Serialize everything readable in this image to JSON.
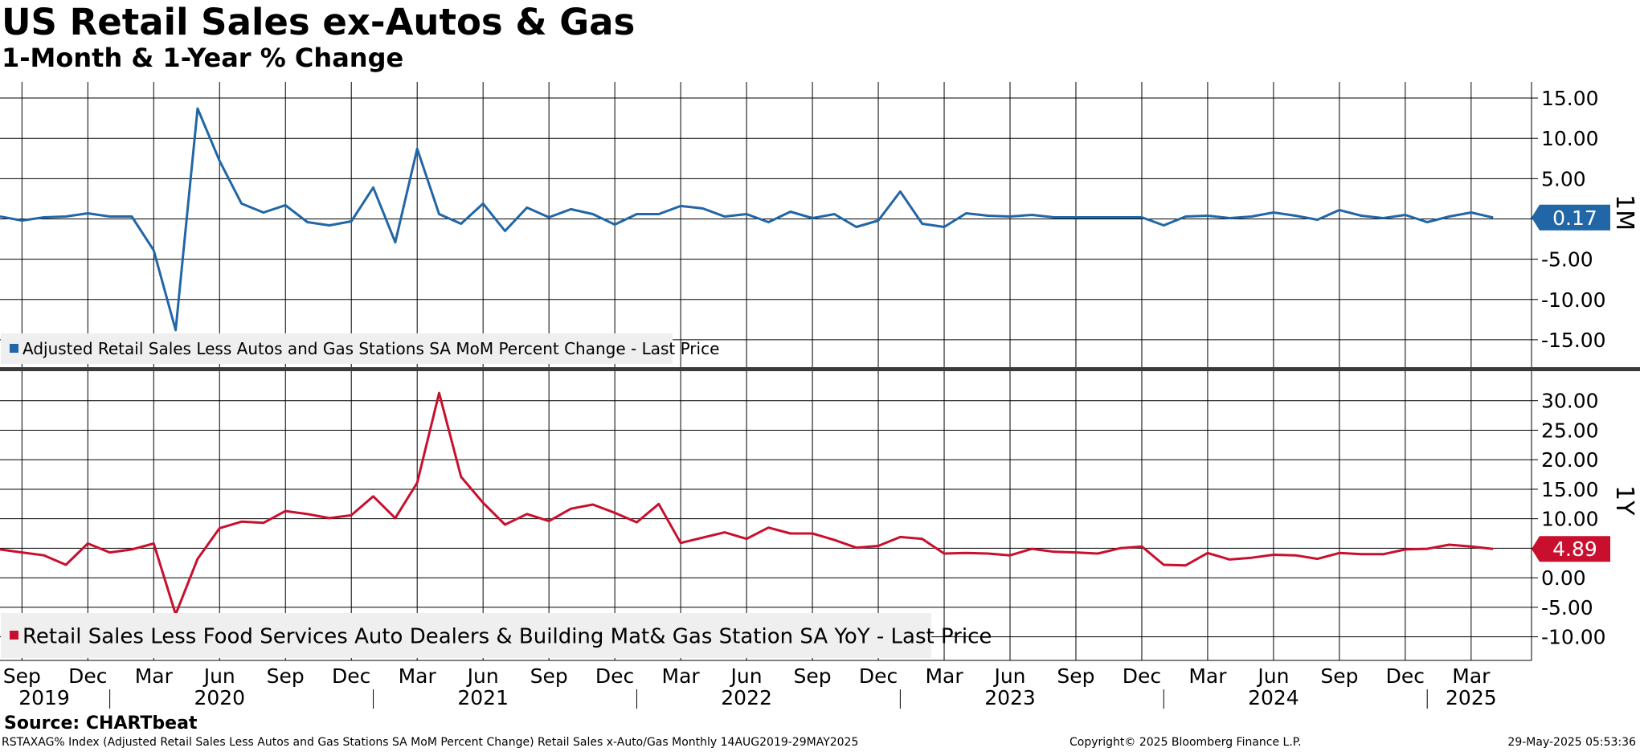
{
  "header": {
    "title": "US Retail Sales ex-Autos & Gas",
    "subtitle": "1-Month & 1-Year % Change"
  },
  "footer": {
    "source": "Source: CHARTbeat",
    "description": "RSTAXAG% Index (Adjusted Retail Sales Less Autos and Gas Stations SA MoM Percent Change) Retail Sales x-Auto/Gas  Monthly 14AUG2019-29MAY2025",
    "copyright": "Copyright© 2025 Bloomberg Finance L.P.",
    "timestamp": "29-May-2025 05:53:36"
  },
  "chart_data": [
    {
      "type": "line",
      "panel_label": "1M",
      "legend": "Adjusted Retail Sales Less Autos and Gas Stations SA MoM Percent Change - Last Price",
      "color": "#2166a6",
      "last_value_label": "0.17",
      "ylim": [
        -18.5,
        17
      ],
      "yticks": [
        15,
        10,
        5,
        0,
        -5,
        -10,
        -15
      ],
      "ytick_labels": [
        "15.00",
        "10.00",
        "5.00",
        "",
        "-5.00",
        "-10.00",
        "-15.00"
      ],
      "x": [
        "2019-08",
        "2019-09",
        "2019-10",
        "2019-11",
        "2019-12",
        "2020-01",
        "2020-02",
        "2020-03",
        "2020-04",
        "2020-05",
        "2020-06",
        "2020-07",
        "2020-08",
        "2020-09",
        "2020-10",
        "2020-11",
        "2020-12",
        "2021-01",
        "2021-02",
        "2021-03",
        "2021-04",
        "2021-05",
        "2021-06",
        "2021-07",
        "2021-08",
        "2021-09",
        "2021-10",
        "2021-11",
        "2021-12",
        "2022-01",
        "2022-02",
        "2022-03",
        "2022-04",
        "2022-05",
        "2022-06",
        "2022-07",
        "2022-08",
        "2022-09",
        "2022-10",
        "2022-11",
        "2022-12",
        "2023-01",
        "2023-02",
        "2023-03",
        "2023-04",
        "2023-05",
        "2023-06",
        "2023-07",
        "2023-08",
        "2023-09",
        "2023-10",
        "2023-11",
        "2023-12",
        "2024-01",
        "2024-02",
        "2024-03",
        "2024-04",
        "2024-05",
        "2024-06",
        "2024-07",
        "2024-08",
        "2024-09",
        "2024-10",
        "2024-11",
        "2024-12",
        "2025-01",
        "2025-02",
        "2025-03",
        "2025-04"
      ],
      "values": [
        0.3,
        -0.2,
        0.2,
        0.3,
        0.7,
        0.3,
        0.3,
        -3.9,
        -13.8,
        13.7,
        7.2,
        1.9,
        0.8,
        1.7,
        -0.4,
        -0.8,
        -0.3,
        3.9,
        -2.9,
        8.7,
        0.6,
        -0.6,
        1.9,
        -1.5,
        1.4,
        0.2,
        1.2,
        0.6,
        -0.7,
        0.6,
        0.6,
        1.6,
        1.3,
        0.3,
        0.6,
        -0.4,
        0.9,
        0.1,
        0.6,
        -1.0,
        -0.2,
        3.4,
        -0.6,
        -1.0,
        0.7,
        0.4,
        0.3,
        0.5,
        0.2,
        0.2,
        0.2,
        0.2,
        0.2,
        -0.8,
        0.3,
        0.4,
        0.1,
        0.3,
        0.8,
        0.4,
        -0.1,
        1.1,
        0.4,
        0.1,
        0.5,
        -0.4,
        0.3,
        0.8,
        0.17
      ]
    },
    {
      "type": "line",
      "panel_label": "1Y",
      "legend": "Retail Sales Less Food Services Auto Dealers & Building Mat& Gas Station SA YoY - Last Price",
      "color": "#c8102e",
      "last_value_label": "4.89",
      "ylim": [
        -14,
        35
      ],
      "yticks": [
        30,
        25,
        20,
        15,
        10,
        5,
        0,
        -5,
        -10
      ],
      "ytick_labels": [
        "30.00",
        "25.00",
        "20.00",
        "15.00",
        "10.00",
        "",
        "0.00",
        "-5.00",
        "-10.00"
      ],
      "x": [
        "2019-08",
        "2019-09",
        "2019-10",
        "2019-11",
        "2019-12",
        "2020-01",
        "2020-02",
        "2020-03",
        "2020-04",
        "2020-05",
        "2020-06",
        "2020-07",
        "2020-08",
        "2020-09",
        "2020-10",
        "2020-11",
        "2020-12",
        "2021-01",
        "2021-02",
        "2021-03",
        "2021-04",
        "2021-05",
        "2021-06",
        "2021-07",
        "2021-08",
        "2021-09",
        "2021-10",
        "2021-11",
        "2021-12",
        "2022-01",
        "2022-02",
        "2022-03",
        "2022-04",
        "2022-05",
        "2022-06",
        "2022-07",
        "2022-08",
        "2022-09",
        "2022-10",
        "2022-11",
        "2022-12",
        "2023-01",
        "2023-02",
        "2023-03",
        "2023-04",
        "2023-05",
        "2023-06",
        "2023-07",
        "2023-08",
        "2023-09",
        "2023-10",
        "2023-11",
        "2023-12",
        "2024-01",
        "2024-02",
        "2024-03",
        "2024-04",
        "2024-05",
        "2024-06",
        "2024-07",
        "2024-08",
        "2024-09",
        "2024-10",
        "2024-11",
        "2024-12",
        "2025-01",
        "2025-02",
        "2025-03",
        "2025-04"
      ],
      "values": [
        4.8,
        4.3,
        3.8,
        2.2,
        5.8,
        4.3,
        4.8,
        5.8,
        -6.2,
        3.2,
        8.4,
        9.5,
        9.3,
        11.3,
        10.8,
        10.1,
        10.6,
        13.8,
        10.1,
        16.1,
        31.3,
        17.1,
        12.7,
        9.0,
        10.8,
        9.6,
        11.7,
        12.4,
        11.0,
        9.4,
        12.5,
        5.9,
        6.8,
        7.7,
        6.6,
        8.5,
        7.5,
        7.5,
        6.4,
        5.1,
        5.4,
        6.9,
        6.6,
        4.1,
        4.2,
        4.1,
        3.8,
        4.9,
        4.4,
        4.3,
        4.1,
        5.0,
        5.3,
        2.2,
        2.1,
        4.2,
        3.1,
        3.4,
        3.9,
        3.8,
        3.2,
        4.2,
        4.0,
        4.0,
        4.8,
        4.9,
        5.6,
        5.3,
        4.89
      ]
    }
  ],
  "x_axis": {
    "months": [
      {
        "label": "Sep",
        "date": "2019-09"
      },
      {
        "label": "Dec",
        "date": "2019-12"
      },
      {
        "label": "Mar",
        "date": "2020-03"
      },
      {
        "label": "Jun",
        "date": "2020-06"
      },
      {
        "label": "Sep",
        "date": "2020-09"
      },
      {
        "label": "Dec",
        "date": "2020-12"
      },
      {
        "label": "Mar",
        "date": "2021-03"
      },
      {
        "label": "Jun",
        "date": "2021-06"
      },
      {
        "label": "Sep",
        "date": "2021-09"
      },
      {
        "label": "Dec",
        "date": "2021-12"
      },
      {
        "label": "Mar",
        "date": "2022-03"
      },
      {
        "label": "Jun",
        "date": "2022-06"
      },
      {
        "label": "Sep",
        "date": "2022-09"
      },
      {
        "label": "Dec",
        "date": "2022-12"
      },
      {
        "label": "Mar",
        "date": "2023-03"
      },
      {
        "label": "Jun",
        "date": "2023-06"
      },
      {
        "label": "Sep",
        "date": "2023-09"
      },
      {
        "label": "Dec",
        "date": "2023-12"
      },
      {
        "label": "Mar",
        "date": "2024-03"
      },
      {
        "label": "Jun",
        "date": "2024-06"
      },
      {
        "label": "Sep",
        "date": "2024-09"
      },
      {
        "label": "Dec",
        "date": "2024-12"
      },
      {
        "label": "Mar",
        "date": "2025-03"
      }
    ],
    "years": [
      {
        "label": "2019",
        "date": "2019-10"
      },
      {
        "label": "2020",
        "date": "2020-06"
      },
      {
        "label": "2021",
        "date": "2021-06"
      },
      {
        "label": "2022",
        "date": "2022-06"
      },
      {
        "label": "2023",
        "date": "2023-06"
      },
      {
        "label": "2024",
        "date": "2024-06"
      },
      {
        "label": "2025",
        "date": "2025-03"
      }
    ]
  }
}
